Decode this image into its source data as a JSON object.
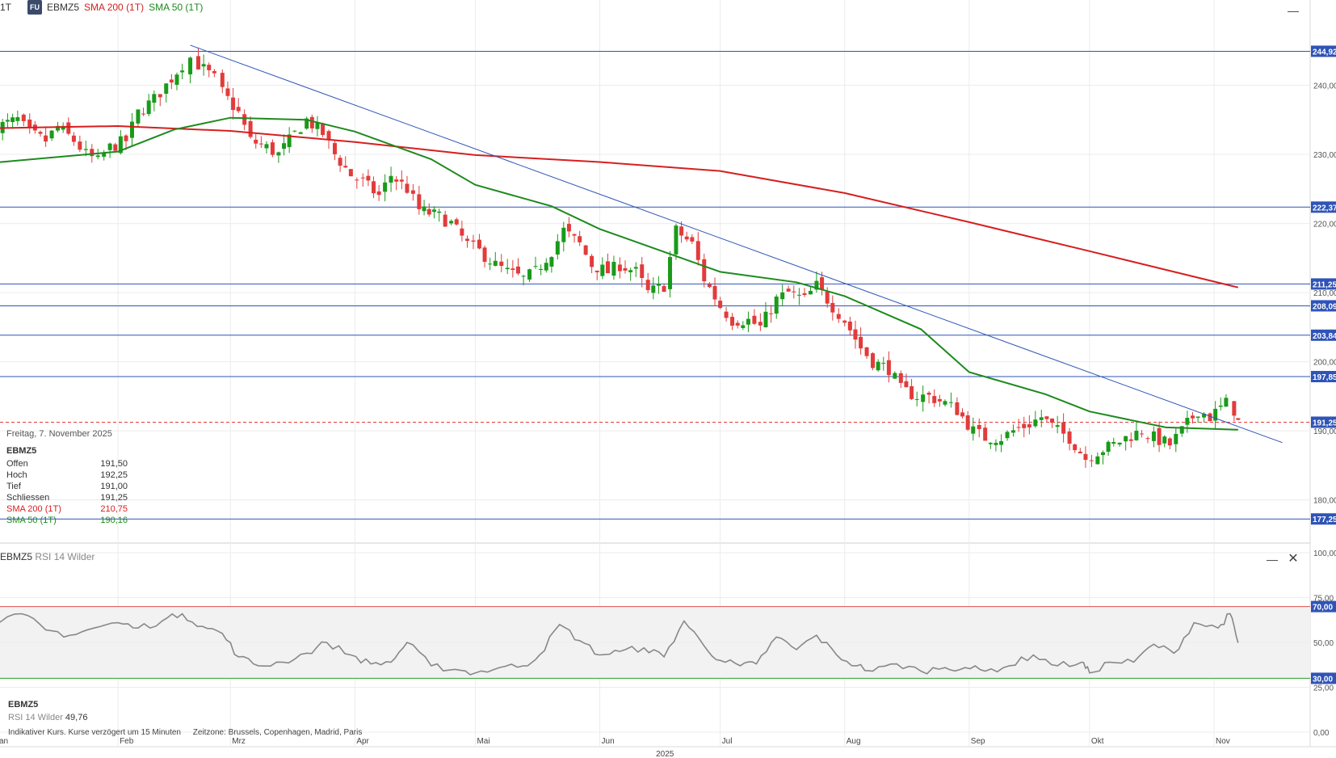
{
  "header": {
    "interval": "1T",
    "badge": "FU",
    "symbol": "EBMZ5",
    "sma200_label": "SMA 200 (1T)",
    "sma50_label": "SMA 50 (1T)",
    "minimize_icon": "minimize-icon"
  },
  "colors": {
    "up": "#1a9a1a",
    "down": "#e23b3b",
    "sma200": "#d61f1f",
    "sma50": "#1e8a1e",
    "level": "#2f54b8",
    "axis_badge": "#2f54b8",
    "rsi_line": "#888888",
    "rsi_upper": "#e05050",
    "rsi_lower": "#2aa02a"
  },
  "info": {
    "date": "Freitag, 7. November 2025",
    "symbol": "EBMZ5",
    "rows": [
      {
        "label": "Offen",
        "value": "191,50",
        "color": "#333333"
      },
      {
        "label": "Hoch",
        "value": "192,25",
        "color": "#333333"
      },
      {
        "label": "Tief",
        "value": "191,00",
        "color": "#333333"
      },
      {
        "label": "Schliessen",
        "value": "191,25",
        "color": "#333333"
      },
      {
        "label": "SMA 200 (1T)",
        "value": "210,75",
        "color": "#d61f1f"
      },
      {
        "label": "SMA 50 (1T)",
        "value": "190,16",
        "color": "#1e8a1e"
      }
    ]
  },
  "rsi_panel": {
    "symbol": "EBMZ5",
    "indicator": "RSI 14 Wilder",
    "value_label": "RSI 14 Wilder",
    "value": "49,76",
    "minimize_icon": "minimize-icon",
    "close_icon": "close-icon"
  },
  "footnote": {
    "text": "Indikativer Kurs. Kurse verzögert um 15 Minuten",
    "timezone": "Zeitzone: Brussels, Copenhagen, Madrid, Paris"
  },
  "chart_data": [
    {
      "type": "candlestick",
      "symbol": "EBMZ5",
      "interval": "1T",
      "x_axis": {
        "year_label": "2025",
        "months": [
          {
            "label": "Jan",
            "date": "2025-01-01"
          },
          {
            "label": "Feb",
            "date": "2025-02-01"
          },
          {
            "label": "Mrz",
            "date": "2025-03-01"
          },
          {
            "label": "Apr",
            "date": "2025-04-01"
          },
          {
            "label": "Mai",
            "date": "2025-05-01"
          },
          {
            "label": "Jun",
            "date": "2025-06-01"
          },
          {
            "label": "Jul",
            "date": "2025-07-01"
          },
          {
            "label": "Aug",
            "date": "2025-08-01"
          },
          {
            "label": "Sep",
            "date": "2025-09-01"
          },
          {
            "label": "Okt",
            "date": "2025-10-01"
          },
          {
            "label": "Nov",
            "date": "2025-11-01"
          }
        ]
      },
      "y_axis": {
        "ticks": [
          "240,00",
          "230,00",
          "220,00",
          "210,00",
          "200,00",
          "190,00",
          "180,00"
        ],
        "tick_values": [
          240,
          230,
          220,
          210,
          200,
          190,
          180
        ],
        "ylim": [
          174,
          250
        ]
      },
      "horizontal_levels": [
        {
          "value": 244.92,
          "label": "244,92"
        },
        {
          "value": 222.37,
          "label": "222,37"
        },
        {
          "value": 211.25,
          "label": "211,25"
        },
        {
          "value": 208.09,
          "label": "208,09"
        },
        {
          "value": 203.84,
          "label": "203,84"
        },
        {
          "value": 197.85,
          "label": "197,85"
        },
        {
          "value": 177.25,
          "label": "177,25"
        }
      ],
      "last_price": {
        "value": 191.25,
        "label": "191,25"
      },
      "trendline": {
        "start": {
          "date": "2025-02-19",
          "value": 245.8
        },
        "end": {
          "date": "2025-11-18",
          "value": 188.3
        }
      },
      "close_series": [
        [
          "2025-01-02",
          234
        ],
        [
          "2025-01-07",
          235
        ],
        [
          "2025-01-10",
          233
        ],
        [
          "2025-01-14",
          232
        ],
        [
          "2025-01-17",
          234
        ],
        [
          "2025-01-21",
          232
        ],
        [
          "2025-01-24",
          230
        ],
        [
          "2025-01-27",
          229
        ],
        [
          "2025-01-30",
          231
        ],
        [
          "2025-02-03",
          232
        ],
        [
          "2025-02-06",
          236
        ],
        [
          "2025-02-10",
          238
        ],
        [
          "2025-02-13",
          240
        ],
        [
          "2025-02-17",
          243
        ],
        [
          "2025-02-19",
          244
        ],
        [
          "2025-02-21",
          243
        ],
        [
          "2025-02-25",
          241
        ],
        [
          "2025-02-27",
          239
        ],
        [
          "2025-03-03",
          236
        ],
        [
          "2025-03-06",
          232
        ],
        [
          "2025-03-10",
          231
        ],
        [
          "2025-03-13",
          230
        ],
        [
          "2025-03-17",
          233
        ],
        [
          "2025-03-20",
          235
        ],
        [
          "2025-03-24",
          233
        ],
        [
          "2025-03-27",
          230
        ],
        [
          "2025-03-31",
          227
        ],
        [
          "2025-04-03",
          226
        ],
        [
          "2025-04-07",
          224
        ],
        [
          "2025-04-10",
          227
        ],
        [
          "2025-04-14",
          225
        ],
        [
          "2025-04-17",
          222
        ],
        [
          "2025-04-22",
          221
        ],
        [
          "2025-04-25",
          220
        ],
        [
          "2025-04-29",
          217
        ],
        [
          "2025-05-02",
          216
        ],
        [
          "2025-05-06",
          214
        ],
        [
          "2025-05-09",
          213
        ],
        [
          "2025-05-13",
          212
        ],
        [
          "2025-05-16",
          213
        ],
        [
          "2025-05-20",
          216
        ],
        [
          "2025-05-23",
          219
        ],
        [
          "2025-05-27",
          217
        ],
        [
          "2025-05-30",
          214
        ],
        [
          "2025-06-03",
          213
        ],
        [
          "2025-06-06",
          214
        ],
        [
          "2025-06-10",
          213
        ],
        [
          "2025-06-13",
          210
        ],
        [
          "2025-06-17",
          211
        ],
        [
          "2025-06-20",
          219
        ],
        [
          "2025-06-24",
          217
        ],
        [
          "2025-06-27",
          212
        ],
        [
          "2025-07-01",
          208
        ],
        [
          "2025-07-04",
          206
        ],
        [
          "2025-07-08",
          206
        ],
        [
          "2025-07-11",
          205
        ],
        [
          "2025-07-15",
          209
        ],
        [
          "2025-07-18",
          210
        ],
        [
          "2025-07-22",
          209
        ],
        [
          "2025-07-25",
          211
        ],
        [
          "2025-07-29",
          208
        ],
        [
          "2025-08-01",
          206
        ],
        [
          "2025-08-05",
          202
        ],
        [
          "2025-08-08",
          200
        ],
        [
          "2025-08-12",
          199
        ],
        [
          "2025-08-15",
          196
        ],
        [
          "2025-08-19",
          195
        ],
        [
          "2025-08-22",
          195
        ],
        [
          "2025-08-26",
          194
        ],
        [
          "2025-08-29",
          193
        ],
        [
          "2025-09-02",
          190
        ],
        [
          "2025-09-05",
          189
        ],
        [
          "2025-09-09",
          189
        ],
        [
          "2025-09-12",
          190
        ],
        [
          "2025-09-16",
          191
        ],
        [
          "2025-09-19",
          192
        ],
        [
          "2025-09-23",
          190
        ],
        [
          "2025-09-26",
          189
        ],
        [
          "2025-09-30",
          186
        ],
        [
          "2025-10-03",
          187
        ],
        [
          "2025-10-07",
          188
        ],
        [
          "2025-10-10",
          189
        ],
        [
          "2025-10-14",
          190
        ],
        [
          "2025-10-17",
          189
        ],
        [
          "2025-10-21",
          188
        ],
        [
          "2025-10-24",
          190
        ],
        [
          "2025-10-28",
          193
        ],
        [
          "2025-10-31",
          192
        ],
        [
          "2025-11-04",
          194
        ],
        [
          "2025-11-06",
          193
        ],
        [
          "2025-11-07",
          191.25
        ]
      ],
      "series": [
        {
          "name": "SMA 200 (1T)",
          "points": [
            [
              "2025-01-01",
              233.8
            ],
            [
              "2025-02-01",
              234.1
            ],
            [
              "2025-03-01",
              233.4
            ],
            [
              "2025-04-01",
              231.8
            ],
            [
              "2025-05-01",
              229.9
            ],
            [
              "2025-06-01",
              228.9
            ],
            [
              "2025-07-01",
              227.6
            ],
            [
              "2025-08-01",
              224.4
            ],
            [
              "2025-09-01",
              220.2
            ],
            [
              "2025-10-01",
              216.0
            ],
            [
              "2025-11-07",
              210.75
            ]
          ]
        },
        {
          "name": "SMA 50 (1T)",
          "points": [
            [
              "2025-01-01",
              228.8
            ],
            [
              "2025-02-01",
              230.4
            ],
            [
              "2025-02-15",
              233.6
            ],
            [
              "2025-03-01",
              235.3
            ],
            [
              "2025-03-20",
              235.0
            ],
            [
              "2025-04-01",
              233.3
            ],
            [
              "2025-04-20",
              229.3
            ],
            [
              "2025-05-01",
              225.6
            ],
            [
              "2025-05-20",
              222.5
            ],
            [
              "2025-06-01",
              219.2
            ],
            [
              "2025-07-01",
              213.0
            ],
            [
              "2025-07-20",
              211.5
            ],
            [
              "2025-08-01",
              209.5
            ],
            [
              "2025-08-20",
              204.7
            ],
            [
              "2025-09-01",
              198.5
            ],
            [
              "2025-09-20",
              195.3
            ],
            [
              "2025-10-01",
              192.8
            ],
            [
              "2025-10-20",
              190.5
            ],
            [
              "2025-11-07",
              190.16
            ]
          ]
        }
      ]
    },
    {
      "type": "line",
      "indicator": "RSI 14 Wilder",
      "y_axis": {
        "ticks": [
          "100,00",
          "75,00",
          "50,00",
          "25,00",
          "0,00"
        ],
        "tick_values": [
          100,
          75,
          50,
          25,
          0
        ],
        "ylim": [
          0,
          100
        ]
      },
      "bands": [
        {
          "value": 70,
          "label": "70,00"
        },
        {
          "value": 30,
          "label": "30,00"
        }
      ],
      "points": [
        [
          "2025-01-01",
          59
        ],
        [
          "2025-01-08",
          66
        ],
        [
          "2025-01-14",
          57
        ],
        [
          "2025-01-20",
          54
        ],
        [
          "2025-01-26",
          58
        ],
        [
          "2025-02-01",
          61
        ],
        [
          "2025-02-06",
          58
        ],
        [
          "2025-02-12",
          62
        ],
        [
          "2025-02-17",
          66
        ],
        [
          "2025-02-22",
          59
        ],
        [
          "2025-02-27",
          55
        ],
        [
          "2025-03-03",
          42
        ],
        [
          "2025-03-08",
          37
        ],
        [
          "2025-03-14",
          39
        ],
        [
          "2025-03-20",
          44
        ],
        [
          "2025-03-25",
          50
        ],
        [
          "2025-03-31",
          43
        ],
        [
          "2025-04-05",
          38
        ],
        [
          "2025-04-10",
          39
        ],
        [
          "2025-04-14",
          50
        ],
        [
          "2025-04-20",
          37
        ],
        [
          "2025-04-26",
          35
        ],
        [
          "2025-05-01",
          33
        ],
        [
          "2025-05-07",
          36
        ],
        [
          "2025-05-13",
          37
        ],
        [
          "2025-05-17",
          43
        ],
        [
          "2025-05-22",
          60
        ],
        [
          "2025-05-27",
          51
        ],
        [
          "2025-06-01",
          43
        ],
        [
          "2025-06-06",
          45
        ],
        [
          "2025-06-12",
          47
        ],
        [
          "2025-06-17",
          42
        ],
        [
          "2025-06-22",
          62
        ],
        [
          "2025-06-27",
          48
        ],
        [
          "2025-07-01",
          40
        ],
        [
          "2025-07-06",
          37
        ],
        [
          "2025-07-10",
          38
        ],
        [
          "2025-07-15",
          53
        ],
        [
          "2025-07-20",
          46
        ],
        [
          "2025-07-25",
          54
        ],
        [
          "2025-07-30",
          43
        ],
        [
          "2025-08-04",
          37
        ],
        [
          "2025-08-08",
          34
        ],
        [
          "2025-08-14",
          38
        ],
        [
          "2025-08-20",
          34
        ],
        [
          "2025-08-26",
          36
        ],
        [
          "2025-08-31",
          36
        ],
        [
          "2025-09-05",
          34
        ],
        [
          "2025-09-11",
          37
        ],
        [
          "2025-09-17",
          43
        ],
        [
          "2025-09-23",
          37
        ],
        [
          "2025-09-29",
          39
        ],
        [
          "2025-10-01",
          33
        ],
        [
          "2025-10-06",
          39
        ],
        [
          "2025-10-12",
          39
        ],
        [
          "2025-10-17",
          49
        ],
        [
          "2025-10-22",
          44
        ],
        [
          "2025-10-27",
          61
        ],
        [
          "2025-11-02",
          58
        ],
        [
          "2025-11-05",
          66
        ],
        [
          "2025-11-07",
          49.76
        ]
      ]
    }
  ]
}
